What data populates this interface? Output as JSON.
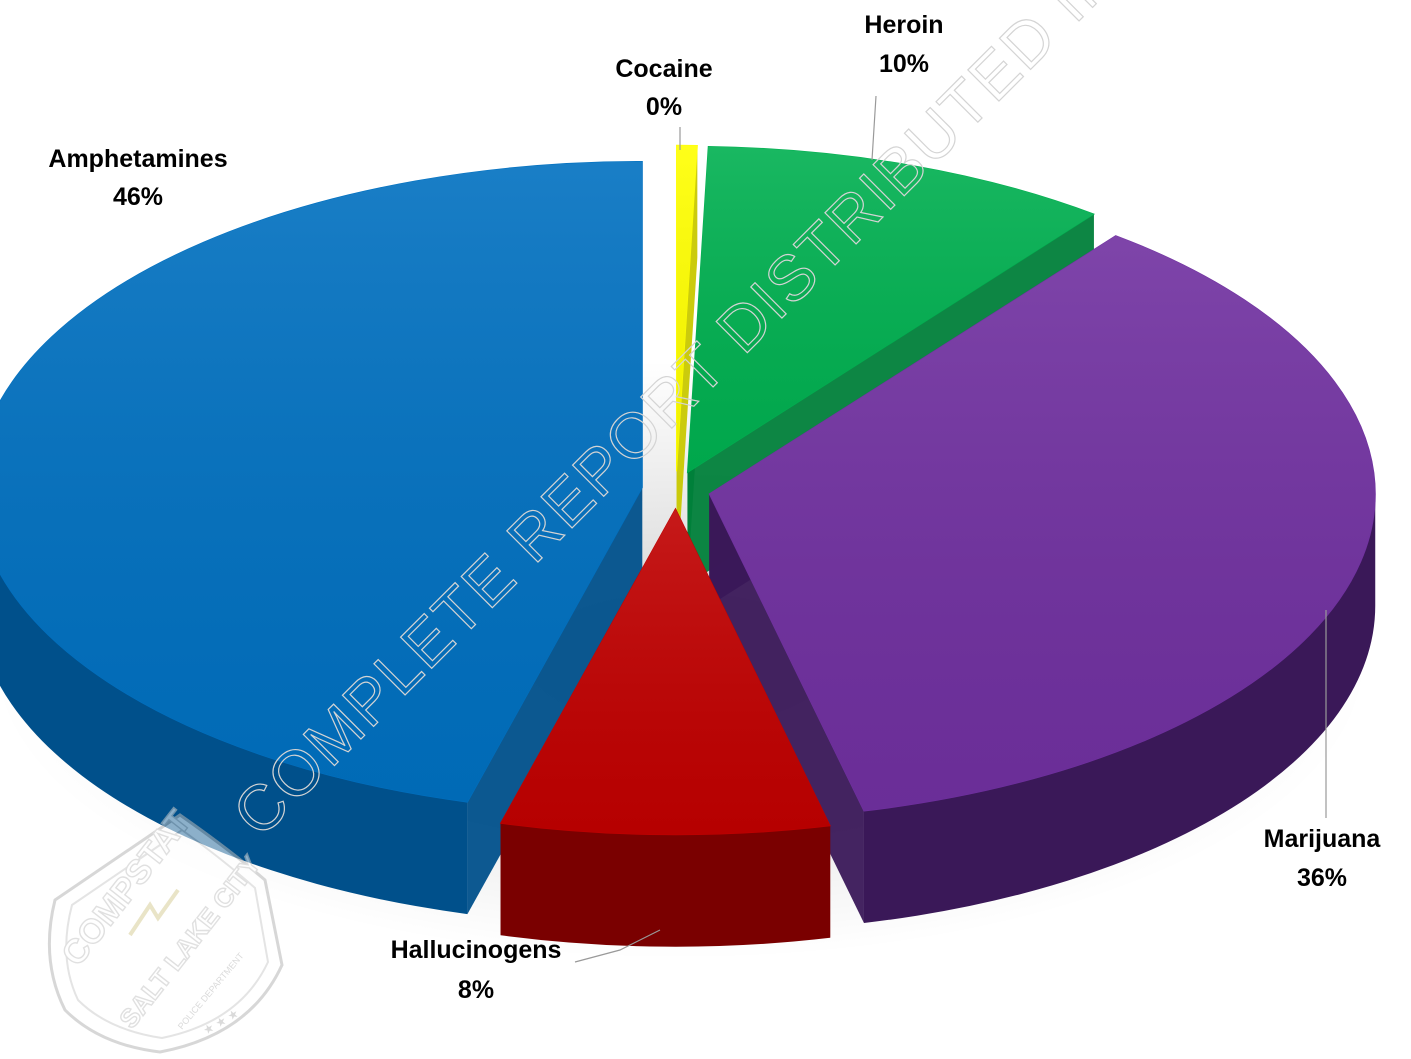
{
  "chart_data": {
    "type": "pie",
    "style": "3d-exploded",
    "slices": [
      {
        "name": "Amphetamines",
        "label": "46%",
        "value": 46,
        "color": "#0070C0",
        "side": "#00508B"
      },
      {
        "name": "Cocaine",
        "label": "0%",
        "value": 0,
        "color": "#FFFF00",
        "side": "#C8C800"
      },
      {
        "name": "Heroin",
        "label": "10%",
        "value": 10,
        "color": "#00B050",
        "side": "#00803A"
      },
      {
        "name": "Marijuana",
        "label": "36%",
        "value": 36,
        "color": "#7030A0",
        "side": "#3A1858"
      },
      {
        "name": "Hallucinogens",
        "label": "8%",
        "value": 8,
        "color": "#C00000",
        "side": "#7A0000"
      }
    ]
  },
  "watermark": "COMPLETE REPORT DISTRIBUTED INCLUDED",
  "seal": {
    "top_text": "COMPSTAT",
    "side_text": "SALT LAKE CITY",
    "bottom_text": "POLICE DEPARTMENT",
    "stars": "★ ★ ★"
  }
}
